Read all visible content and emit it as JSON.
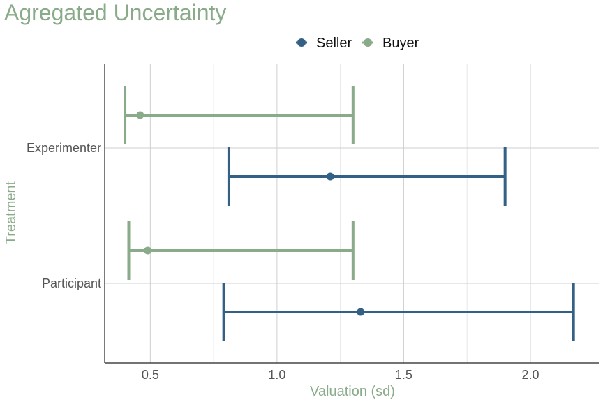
{
  "chart_data": {
    "type": "errorbar",
    "title": "Agregated Uncertainty",
    "xlabel": "Valuation (sd)",
    "ylabel": "Treatment",
    "categories": [
      "Experimenter",
      "Participant"
    ],
    "xlim": [
      0.32,
      2.27
    ],
    "xticks": [
      "0.5",
      "1.0",
      "1.5",
      "2.0"
    ],
    "legend_position": "top",
    "grid": true,
    "series": [
      {
        "name": "Seller",
        "color": "#336186",
        "points": [
          {
            "category": "Experimenter",
            "value": 1.21,
            "low": 0.81,
            "high": 1.9
          },
          {
            "category": "Participant",
            "value": 1.33,
            "low": 0.79,
            "high": 2.17
          }
        ]
      },
      {
        "name": "Buyer",
        "color": "#8aab8a",
        "points": [
          {
            "category": "Experimenter",
            "value": 0.46,
            "low": 0.4,
            "high": 1.3
          },
          {
            "category": "Participant",
            "value": 0.49,
            "low": 0.415,
            "high": 1.3
          }
        ]
      }
    ]
  }
}
